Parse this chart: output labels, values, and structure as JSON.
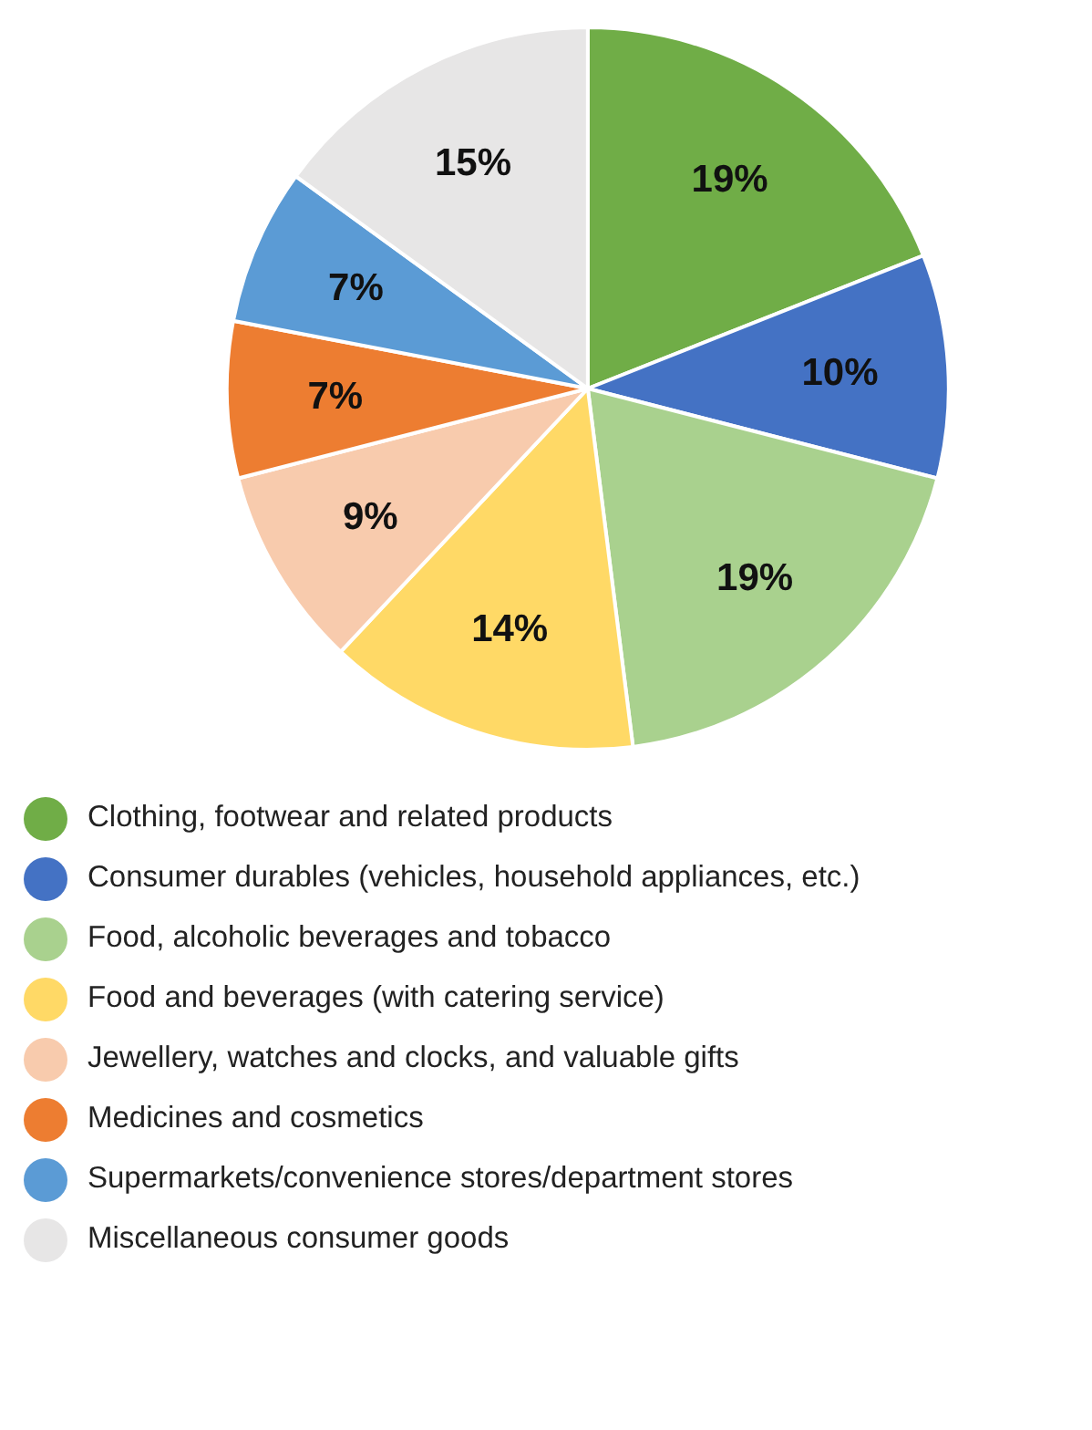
{
  "chart_data": {
    "type": "pie",
    "categories": [
      "Clothing, footwear and related products",
      "Consumer durables (vehicles, household appliances, etc.)",
      "Food, alcoholic beverages and tobacco",
      "Food and beverages (with catering service)",
      "Jewellery, watches and clocks, and valuable gifts",
      "Medicines and cosmetics",
      "Supermarkets/convenience stores/department stores",
      "Miscellaneous consumer goods"
    ],
    "values": [
      19,
      10,
      19,
      14,
      9,
      7,
      7,
      15
    ],
    "value_labels": [
      "19%",
      "10%",
      "19%",
      "14%",
      "9%",
      "7%",
      "7%",
      "15%"
    ],
    "colors": [
      "#70ad47",
      "#4472c4",
      "#a9d18e",
      "#ffd966",
      "#f8cbad",
      "#ed7d31",
      "#5b9bd5",
      "#e7e6e6"
    ],
    "legend": "bottom"
  }
}
